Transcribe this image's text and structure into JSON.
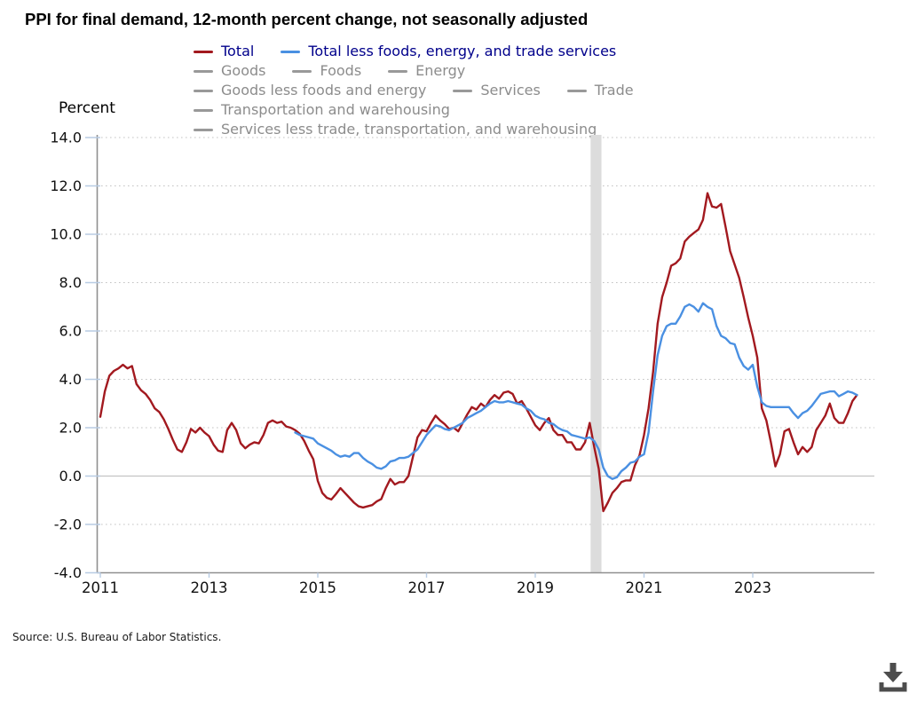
{
  "title": "PPI for final demand, 12-month percent change, not seasonally adjusted",
  "source": "Source: U.S. Bureau of Labor Statistics.",
  "footer": {
    "download_icon": "download-icon"
  },
  "colors": {
    "total_line": "#a2191f",
    "core_line": "#4a90e2",
    "legend_active_text": "#00008b",
    "legend_inactive_text": "#8c8c8c",
    "inactive_swatch": "#999999",
    "gridline": "#c3c3c3",
    "zero_line": "#c4c4c4",
    "axis": "#8f8f8f",
    "tick": "#b8cce4",
    "recession_band": "#dcdcdc",
    "icon_gray": "#4d4d4d"
  },
  "legend": {
    "rows": [
      {
        "items": [
          {
            "label": "Total",
            "color": "#a2191f",
            "active": true
          },
          {
            "label": "Total less foods, energy, and trade services",
            "color": "#4a90e2",
            "active": true
          }
        ]
      },
      {
        "items": [
          {
            "label": "Goods",
            "color": "#999999",
            "active": false
          },
          {
            "label": "Foods",
            "color": "#999999",
            "active": false
          },
          {
            "label": "Energy",
            "color": "#999999",
            "active": false
          }
        ]
      },
      {
        "items": [
          {
            "label": "Goods less foods and energy",
            "color": "#999999",
            "active": false
          },
          {
            "label": "Services",
            "color": "#999999",
            "active": false
          },
          {
            "label": "Trade",
            "color": "#999999",
            "active": false
          }
        ]
      },
      {
        "items": [
          {
            "label": "Transportation and warehousing",
            "color": "#999999",
            "active": false
          }
        ]
      },
      {
        "items": [
          {
            "label": "Services less trade, transportation, and warehousing",
            "color": "#999999",
            "active": false
          }
        ]
      }
    ]
  },
  "y_axis": {
    "label": "Percent",
    "tick_labels": [
      "14.0",
      "12.0",
      "10.0",
      "8.0",
      "6.0",
      "4.0",
      "2.0",
      "0.0",
      "-2.0",
      "-4.0"
    ],
    "tick_values": [
      14,
      12,
      10,
      8,
      6,
      4,
      2,
      0,
      -2,
      -4
    ]
  },
  "x_axis": {
    "tick_labels": [
      "2011",
      "2013",
      "2015",
      "2017",
      "2019",
      "2021",
      "2023"
    ],
    "tick_years": [
      2011,
      2013,
      2015,
      2017,
      2019,
      2021,
      2023
    ]
  },
  "chart_data": {
    "type": "line",
    "title": "PPI for final demand, 12-month percent change, not seasonally adjusted",
    "ylabel": "Percent",
    "ylim": [
      -4,
      14
    ],
    "y_tick_step": 2,
    "x_range": [
      "2011-01",
      "2024-12"
    ],
    "frequency": "monthly",
    "grid": "horizontal-dotted",
    "legend_position": "top",
    "shaded_region": {
      "from": "2020-02",
      "to": "2020-04",
      "color": "#dcdcdc"
    },
    "unplotted_series": [
      "Goods",
      "Foods",
      "Energy",
      "Goods less foods and energy",
      "Services",
      "Trade",
      "Transportation and warehousing",
      "Services less trade, transportation, and warehousing"
    ],
    "series": [
      {
        "name": "Total",
        "color": "#a2191f",
        "start": "2011-01",
        "values": [
          2.45,
          3.5,
          4.15,
          4.35,
          4.45,
          4.6,
          4.45,
          4.55,
          3.8,
          3.55,
          3.4,
          3.15,
          2.8,
          2.65,
          2.35,
          1.95,
          1.5,
          1.1,
          1.0,
          1.4,
          1.95,
          1.8,
          2.0,
          1.8,
          1.65,
          1.3,
          1.05,
          1.0,
          1.9,
          2.2,
          1.9,
          1.35,
          1.15,
          1.3,
          1.4,
          1.35,
          1.7,
          2.2,
          2.3,
          2.2,
          2.25,
          2.05,
          2.0,
          1.9,
          1.75,
          1.45,
          1.05,
          0.7,
          -0.2,
          -0.7,
          -0.9,
          -0.97,
          -0.75,
          -0.5,
          -0.7,
          -0.9,
          -1.1,
          -1.25,
          -1.3,
          -1.25,
          -1.2,
          -1.05,
          -0.95,
          -0.5,
          -0.12,
          -0.35,
          -0.25,
          -0.25,
          0.0,
          0.8,
          1.6,
          1.9,
          1.85,
          2.2,
          2.5,
          2.3,
          2.15,
          1.95,
          2.0,
          1.85,
          2.2,
          2.55,
          2.85,
          2.75,
          3.0,
          2.85,
          3.15,
          3.35,
          3.2,
          3.45,
          3.5,
          3.4,
          3.0,
          3.1,
          2.8,
          2.45,
          2.1,
          1.9,
          2.2,
          2.4,
          1.9,
          1.7,
          1.7,
          1.4,
          1.4,
          1.1,
          1.1,
          1.4,
          2.2,
          1.2,
          0.3,
          -1.45,
          -1.1,
          -0.7,
          -0.5,
          -0.25,
          -0.18,
          -0.18,
          0.45,
          0.85,
          1.7,
          2.8,
          4.3,
          6.3,
          7.4,
          8.0,
          8.7,
          8.8,
          9.0,
          9.7,
          9.9,
          10.05,
          10.2,
          10.6,
          11.7,
          11.15,
          11.1,
          11.25,
          10.3,
          9.3,
          8.75,
          8.2,
          7.4,
          6.55,
          5.8,
          4.9,
          2.8,
          2.3,
          1.4,
          0.4,
          0.9,
          1.85,
          1.95,
          1.4,
          0.9,
          1.2,
          1.0,
          1.2,
          1.9,
          2.2,
          2.5,
          3.0,
          2.4,
          2.2,
          2.2,
          2.6,
          3.1,
          3.35
        ]
      },
      {
        "name": "Total less foods, energy, and trade services",
        "color": "#4a90e2",
        "start": "2014-08",
        "values": [
          1.8,
          1.7,
          1.65,
          1.6,
          1.55,
          1.35,
          1.25,
          1.15,
          1.05,
          0.9,
          0.8,
          0.85,
          0.8,
          0.95,
          0.95,
          0.75,
          0.6,
          0.5,
          0.35,
          0.3,
          0.4,
          0.6,
          0.65,
          0.75,
          0.75,
          0.8,
          0.95,
          1.1,
          1.4,
          1.7,
          1.9,
          2.1,
          2.05,
          1.95,
          1.9,
          2.0,
          2.1,
          2.2,
          2.4,
          2.5,
          2.6,
          2.7,
          2.85,
          3.0,
          3.1,
          3.05,
          3.05,
          3.1,
          3.05,
          3.0,
          2.95,
          2.8,
          2.7,
          2.5,
          2.4,
          2.35,
          2.2,
          2.15,
          2.0,
          1.9,
          1.85,
          1.7,
          1.65,
          1.6,
          1.55,
          1.6,
          1.45,
          1.1,
          0.35,
          0.0,
          -0.12,
          -0.05,
          0.2,
          0.35,
          0.55,
          0.6,
          0.8,
          0.9,
          1.8,
          3.5,
          5.0,
          5.8,
          6.2,
          6.3,
          6.3,
          6.6,
          7.0,
          7.1,
          7.0,
          6.8,
          7.15,
          7.0,
          6.9,
          6.2,
          5.8,
          5.7,
          5.5,
          5.45,
          4.9,
          4.55,
          4.4,
          4.6,
          3.7,
          3.05,
          2.9,
          2.85,
          2.85,
          2.85,
          2.85,
          2.85,
          2.6,
          2.4,
          2.6,
          2.7,
          2.9,
          3.15,
          3.4,
          3.45,
          3.5,
          3.5,
          3.3,
          3.4,
          3.5,
          3.45,
          3.35
        ]
      }
    ]
  }
}
